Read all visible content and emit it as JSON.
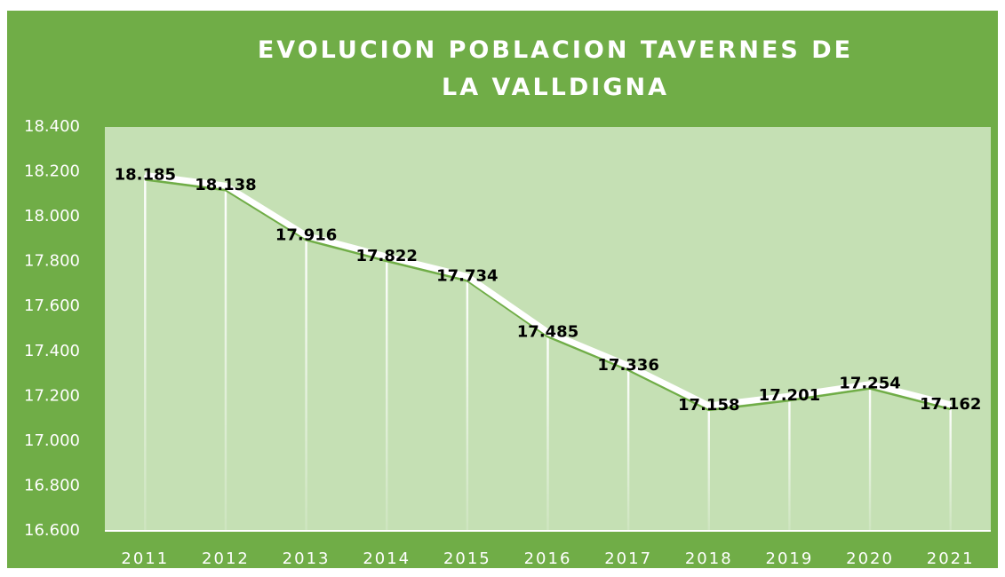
{
  "chart_data": {
    "type": "line",
    "title": "EVOLUCION POBLACION TAVERNES DE LA VALLDIGNA",
    "categories": [
      "2011",
      "2012",
      "2013",
      "2014",
      "2015",
      "2016",
      "2017",
      "2018",
      "2019",
      "2020",
      "2021"
    ],
    "values": [
      18185,
      18138,
      17916,
      17822,
      17734,
      17485,
      17336,
      17158,
      17201,
      17254,
      17162
    ],
    "value_labels": [
      "18.185",
      "18.138",
      "17.916",
      "17.822",
      "17.734",
      "17.485",
      "17.336",
      "17.158",
      "17.201",
      "17.254",
      "17.162"
    ],
    "color": "#ffffff",
    "ylim": [
      16600,
      18400
    ],
    "yticks": [
      {
        "value": 16600,
        "label": "16.600"
      },
      {
        "value": 16800,
        "label": "16.800"
      },
      {
        "value": 17000,
        "label": "17.000"
      },
      {
        "value": 17200,
        "label": "17.200"
      },
      {
        "value": 17400,
        "label": "17.400"
      },
      {
        "value": 17600,
        "label": "17.600"
      },
      {
        "value": 17800,
        "label": "17.800"
      },
      {
        "value": 18000,
        "label": "18.000"
      },
      {
        "value": 18200,
        "label": "18.200"
      },
      {
        "value": 18400,
        "label": "18.400"
      }
    ],
    "grid": false,
    "drop_lines": true
  }
}
